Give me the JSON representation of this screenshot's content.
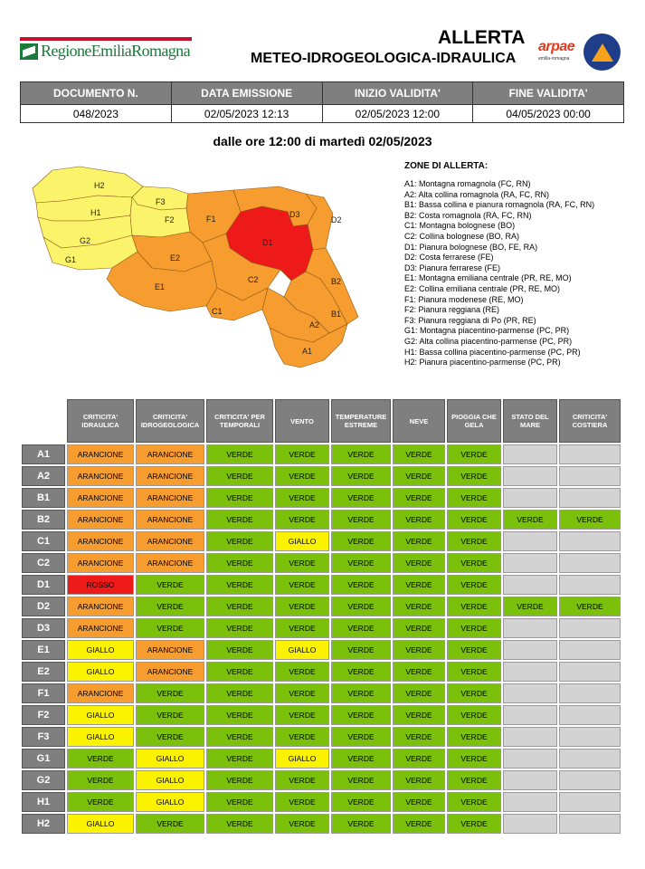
{
  "header": {
    "logo_text": "RegioneEmiliaRomagna",
    "title_line1": "ALLERTA",
    "title_line2": "METEO-IDROGEOLOGICA-IDRAULICA",
    "arpae_logo": "arpae",
    "arpae_sub": "emilia-romagna"
  },
  "document": {
    "headers": [
      "DOCUMENTO N.",
      "DATA EMISSIONE",
      "INIZIO VALIDITA'",
      "FINE VALIDITA'"
    ],
    "values": [
      "048/2023",
      "02/05/2023 12:13",
      "02/05/2023 12:00",
      "04/05/2023 00:00"
    ]
  },
  "subtitle": "dalle ore 12:00 di martedì 02/05/2023",
  "zones": {
    "title": "ZONE DI ALLERTA:",
    "items": [
      "A1: Montagna romagnola (FC, RN)",
      "A2: Alta collina romagnola (RA, FC, RN)",
      "B1: Bassa collina e pianura romagnola (RA, FC, RN)",
      "B2: Costa romagnola (RA, FC, RN)",
      "C1: Montagna bolognese (BO)",
      "C2: Collina bolognese (BO, RA)",
      "D1: Pianura bolognese (BO, FE, RA)",
      "D2: Costa ferrarese (FE)",
      "D3: Pianura ferrarese (FE)",
      "E1: Montagna emiliana centrale (PR, RE, MO)",
      "E2: Collina emiliana centrale (PR, RE, MO)",
      "F1: Pianura modenese (RE, MO)",
      "F2: Pianura reggiana (RE)",
      "F3: Pianura reggiana di Po (PR, RE)",
      "G1: Montagna piacentino-parmense (PC, PR)",
      "G2: Alta collina piacentino-parmense (PC, PR)",
      "H1: Bassa collina piacentino-parmense (PC, PR)",
      "H2: Pianura piacentino-parmense (PC, PR)"
    ]
  },
  "map_labels": [
    "H2",
    "H1",
    "G2",
    "G1",
    "F3",
    "F2",
    "F1",
    "E2",
    "E1",
    "D3",
    "D2",
    "D1",
    "C2",
    "C1",
    "B2",
    "B1",
    "A2",
    "A1"
  ],
  "colors": {
    "ARANCIONE": "#f79c2e",
    "VERDE": "#7bc10b",
    "GIALLO": "#fbf200",
    "ROSSO": "#ee1a1a",
    "NA": "#d3d3d3"
  },
  "alert_table": {
    "columns": [
      "CRITICITA' IDRAULICA",
      "CRITICITA' IDROGEOLOGICA",
      "CRITICITA' PER TEMPORALI",
      "VENTO",
      "TEMPERATURE ESTREME",
      "NEVE",
      "PIOGGIA CHE GELA",
      "STATO DEL MARE",
      "CRITICITA' COSTIERA"
    ],
    "rows": [
      {
        "zone": "A1",
        "levels": [
          "ARANCIONE",
          "ARANCIONE",
          "VERDE",
          "VERDE",
          "VERDE",
          "VERDE",
          "VERDE",
          "",
          ""
        ]
      },
      {
        "zone": "A2",
        "levels": [
          "ARANCIONE",
          "ARANCIONE",
          "VERDE",
          "VERDE",
          "VERDE",
          "VERDE",
          "VERDE",
          "",
          ""
        ]
      },
      {
        "zone": "B1",
        "levels": [
          "ARANCIONE",
          "ARANCIONE",
          "VERDE",
          "VERDE",
          "VERDE",
          "VERDE",
          "VERDE",
          "",
          ""
        ]
      },
      {
        "zone": "B2",
        "levels": [
          "ARANCIONE",
          "ARANCIONE",
          "VERDE",
          "VERDE",
          "VERDE",
          "VERDE",
          "VERDE",
          "VERDE",
          "VERDE"
        ]
      },
      {
        "zone": "C1",
        "levels": [
          "ARANCIONE",
          "ARANCIONE",
          "VERDE",
          "GIALLO",
          "VERDE",
          "VERDE",
          "VERDE",
          "",
          ""
        ]
      },
      {
        "zone": "C2",
        "levels": [
          "ARANCIONE",
          "ARANCIONE",
          "VERDE",
          "VERDE",
          "VERDE",
          "VERDE",
          "VERDE",
          "",
          ""
        ]
      },
      {
        "zone": "D1",
        "levels": [
          "ROSSO",
          "VERDE",
          "VERDE",
          "VERDE",
          "VERDE",
          "VERDE",
          "VERDE",
          "",
          ""
        ]
      },
      {
        "zone": "D2",
        "levels": [
          "ARANCIONE",
          "VERDE",
          "VERDE",
          "VERDE",
          "VERDE",
          "VERDE",
          "VERDE",
          "VERDE",
          "VERDE"
        ]
      },
      {
        "zone": "D3",
        "levels": [
          "ARANCIONE",
          "VERDE",
          "VERDE",
          "VERDE",
          "VERDE",
          "VERDE",
          "VERDE",
          "",
          ""
        ]
      },
      {
        "zone": "E1",
        "levels": [
          "GIALLO",
          "ARANCIONE",
          "VERDE",
          "GIALLO",
          "VERDE",
          "VERDE",
          "VERDE",
          "",
          ""
        ]
      },
      {
        "zone": "E2",
        "levels": [
          "GIALLO",
          "ARANCIONE",
          "VERDE",
          "VERDE",
          "VERDE",
          "VERDE",
          "VERDE",
          "",
          ""
        ]
      },
      {
        "zone": "F1",
        "levels": [
          "ARANCIONE",
          "VERDE",
          "VERDE",
          "VERDE",
          "VERDE",
          "VERDE",
          "VERDE",
          "",
          ""
        ]
      },
      {
        "zone": "F2",
        "levels": [
          "GIALLO",
          "VERDE",
          "VERDE",
          "VERDE",
          "VERDE",
          "VERDE",
          "VERDE",
          "",
          ""
        ]
      },
      {
        "zone": "F3",
        "levels": [
          "GIALLO",
          "VERDE",
          "VERDE",
          "VERDE",
          "VERDE",
          "VERDE",
          "VERDE",
          "",
          ""
        ]
      },
      {
        "zone": "G1",
        "levels": [
          "VERDE",
          "GIALLO",
          "VERDE",
          "GIALLO",
          "VERDE",
          "VERDE",
          "VERDE",
          "",
          ""
        ]
      },
      {
        "zone": "G2",
        "levels": [
          "VERDE",
          "GIALLO",
          "VERDE",
          "VERDE",
          "VERDE",
          "VERDE",
          "VERDE",
          "",
          ""
        ]
      },
      {
        "zone": "H1",
        "levels": [
          "VERDE",
          "GIALLO",
          "VERDE",
          "VERDE",
          "VERDE",
          "VERDE",
          "VERDE",
          "",
          ""
        ]
      },
      {
        "zone": "H2",
        "levels": [
          "GIALLO",
          "VERDE",
          "VERDE",
          "VERDE",
          "VERDE",
          "VERDE",
          "VERDE",
          "",
          ""
        ]
      }
    ]
  }
}
